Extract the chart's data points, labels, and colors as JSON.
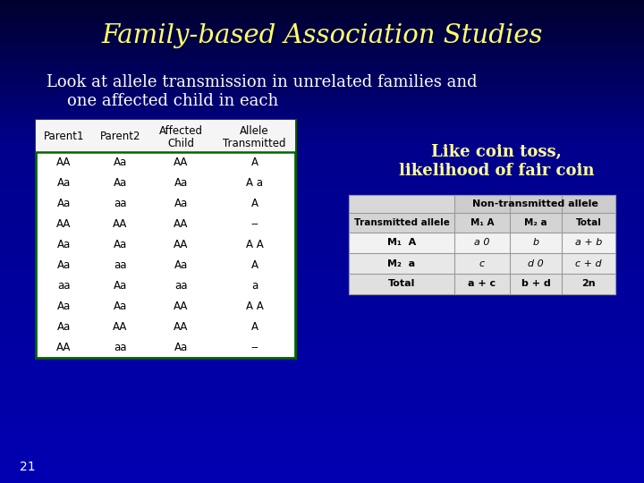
{
  "title": "Family-based Association Studies",
  "subtitle_line1": "Look at allele transmission in unrelated families and",
  "subtitle_line2": "one affected child in each",
  "slide_number": "21",
  "bg_top_color": "#00004a",
  "bg_bottom_color": "#0000cc",
  "title_color": "#FFFF66",
  "subtitle_color": "#FFFFFF",
  "slide_num_color": "#FFFFFF",
  "left_table_headers_row1": [
    "Parent1",
    "Parent2",
    "Affected",
    "Allele"
  ],
  "left_table_headers_row2": [
    "",
    "",
    "Child",
    "Transmitted"
  ],
  "left_table_rows": [
    [
      "AA",
      "Aa",
      "AA",
      "A"
    ],
    [
      "Aa",
      "Aa",
      "Aa",
      "A a"
    ],
    [
      "Aa",
      "aa",
      "Aa",
      "A"
    ],
    [
      "AA",
      "AA",
      "AA",
      "--"
    ],
    [
      "Aa",
      "Aa",
      "AA",
      "A A"
    ],
    [
      "Aa",
      "aa",
      "Aa",
      "A"
    ],
    [
      "aa",
      "Aa",
      "aa",
      "a"
    ],
    [
      "Aa",
      "Aa",
      "AA",
      "A A"
    ],
    [
      "Aa",
      "AA",
      "AA",
      "A"
    ],
    [
      "AA",
      "aa",
      "Aa",
      "--"
    ]
  ],
  "coin_toss_line1": "Like coin toss,",
  "coin_toss_line2": "likelihood of fair coin",
  "coin_toss_color": "#FFFF99",
  "rt_header_span": "Non-transmitted allele",
  "rt_col_headers": [
    "Transmitted allele",
    "M₁ A",
    "M₂ a",
    "Total"
  ],
  "rt_rows": [
    [
      "M₁  A",
      "a 0",
      "b",
      "a + b"
    ],
    [
      "M₂  a",
      "c",
      "d 0",
      "c + d"
    ],
    [
      "Total",
      "a + c",
      "b + d",
      "2n"
    ]
  ]
}
